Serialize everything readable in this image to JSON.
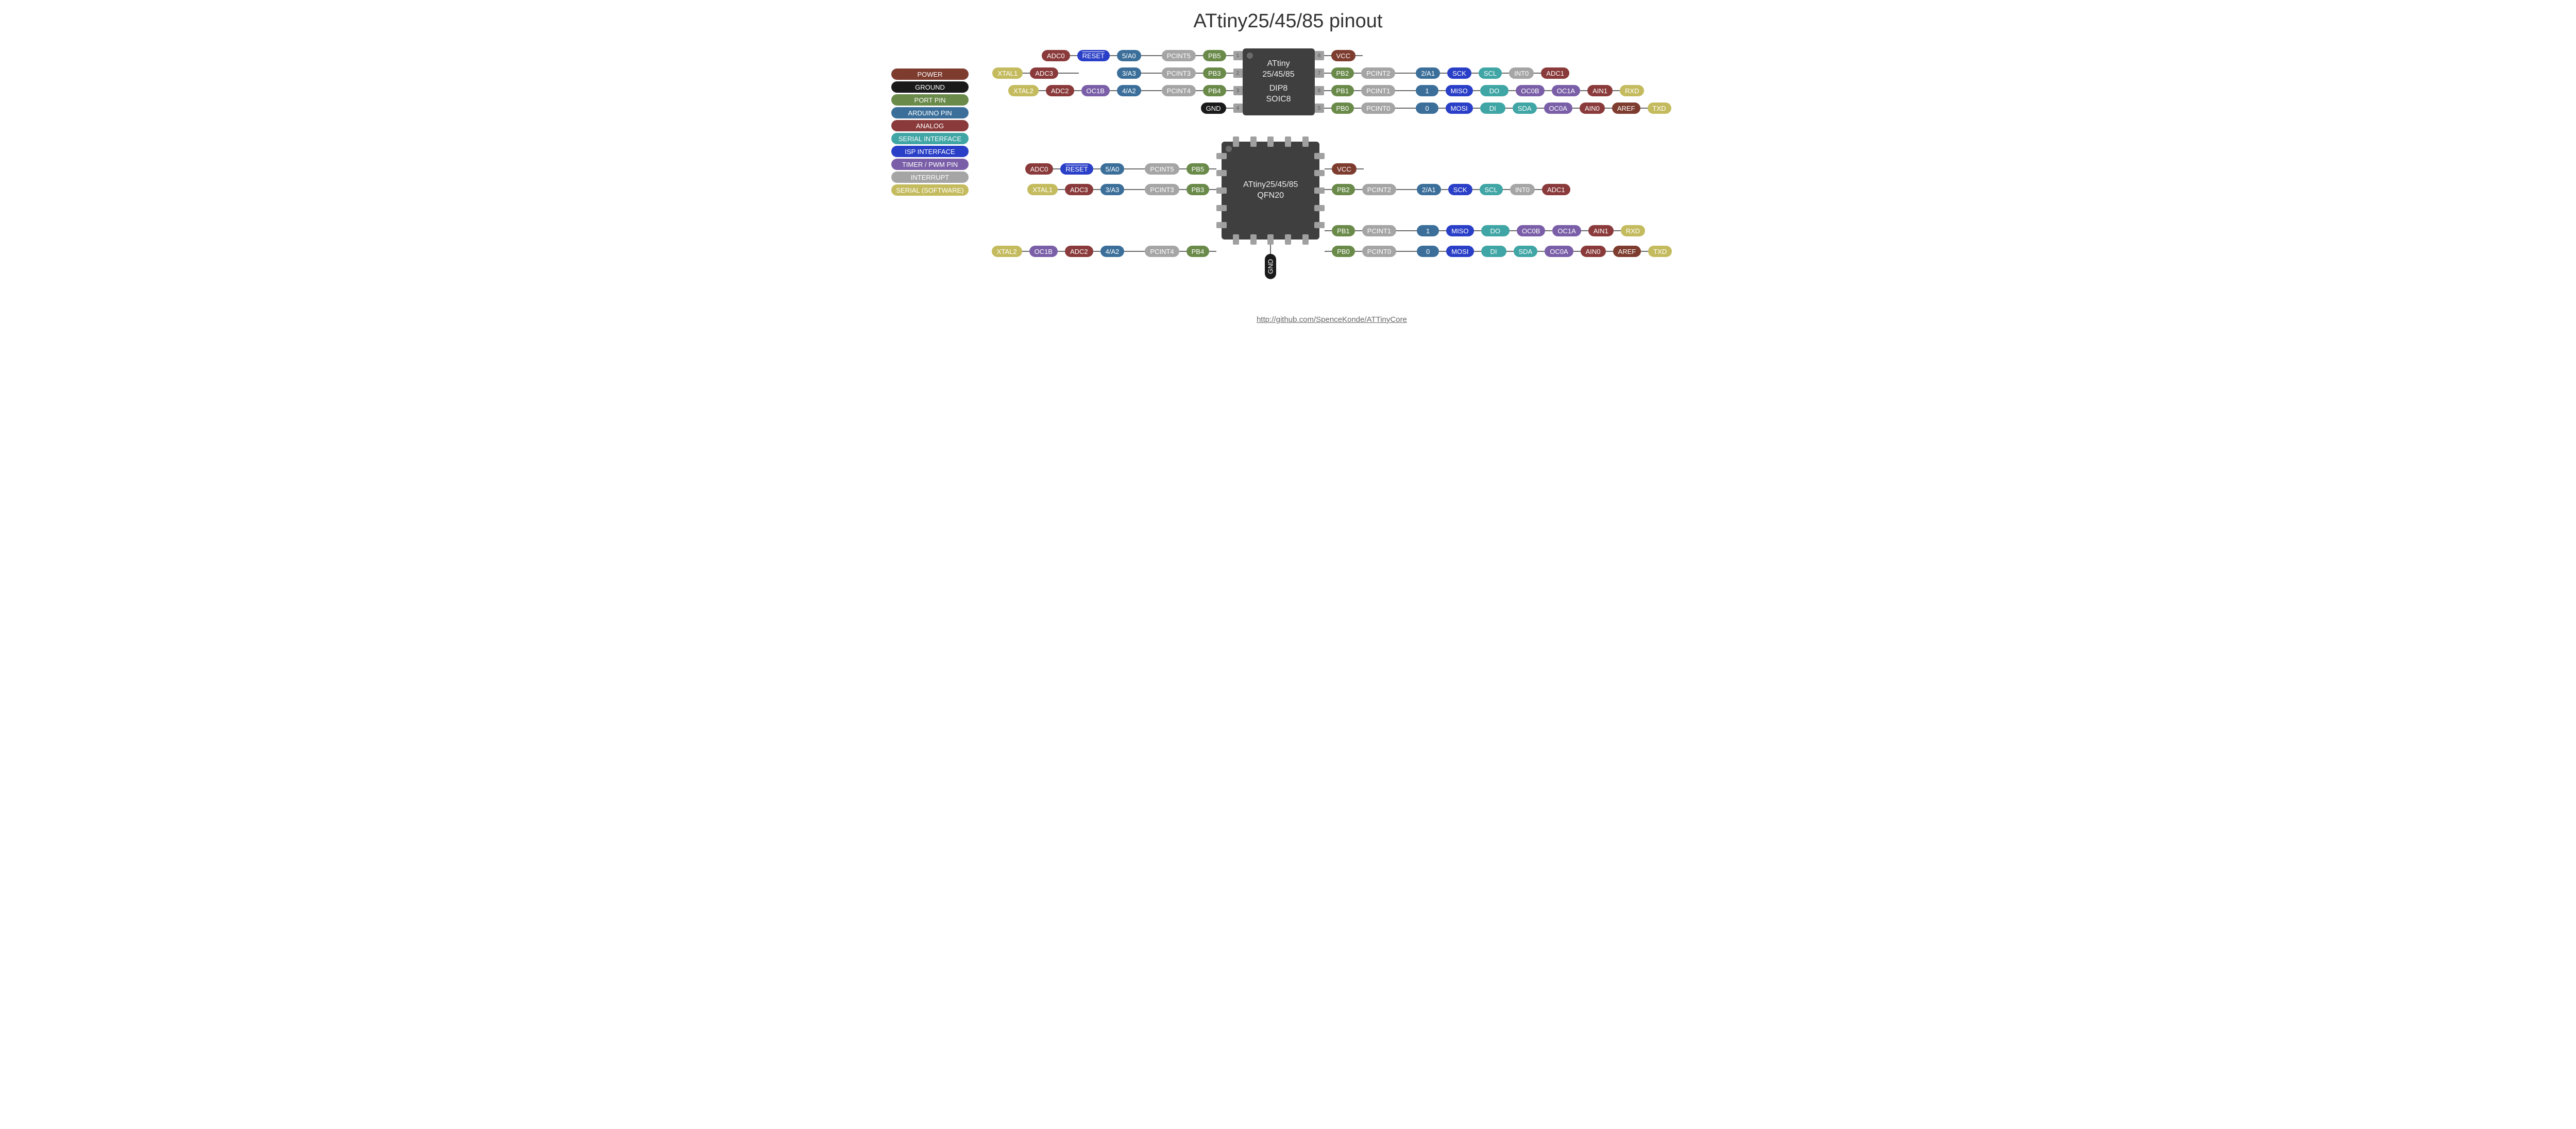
{
  "title": "ATtiny25/45/85 pinout",
  "footer_url": "http://github.com/SpenceKonde/ATTinyCore",
  "colors": {
    "power": "#7e3c2f",
    "ground": "#1a1a1a",
    "port": "#6a8a4a",
    "arduino": "#3b6f9a",
    "analog": "#8a3a3a",
    "serial": "#3fa5a5",
    "isp": "#2a3fc7",
    "timer": "#7a5fa8",
    "interrupt": "#a5a5a5",
    "softserial": "#c4bb5e",
    "chip_bg": "#3f3f3f",
    "chip_dot": "#6a6a6a",
    "wire": "#6a6a6a",
    "pinnum_bg": "#a0a0a0",
    "bg": "#ffffff"
  },
  "legend": [
    {
      "label": "POWER",
      "color_key": "power"
    },
    {
      "label": "GROUND",
      "color_key": "ground"
    },
    {
      "label": "PORT PIN",
      "color_key": "port"
    },
    {
      "label": "ARDUINO PIN",
      "color_key": "arduino"
    },
    {
      "label": "ANALOG",
      "color_key": "analog"
    },
    {
      "label": "SERIAL INTERFACE",
      "color_key": "serial"
    },
    {
      "label": "ISP INTERFACE",
      "color_key": "isp"
    },
    {
      "label": "TIMER / PWM PIN",
      "color_key": "timer"
    },
    {
      "label": "INTERRUPT",
      "color_key": "interrupt"
    },
    {
      "label": "SERIAL (SOFTWARE)",
      "color_key": "softserial"
    }
  ],
  "wire_lengths": {
    "short": 14,
    "long": 40
  },
  "dip8": {
    "chip_label_1": "ATtiny",
    "chip_label_2": "25/45/85",
    "chip_label_3": "DIP8",
    "chip_label_4": "SOIC8",
    "chip_w": 140,
    "chip_h": 130,
    "left_pins": [
      {
        "num": "1",
        "chain": [
          {
            "t": "ADC0",
            "c": "analog",
            "w": "short"
          },
          {
            "t": "RESET",
            "c": "isp",
            "overline": true,
            "w": "short"
          },
          {
            "t": "5/A0",
            "c": "arduino",
            "w": "long"
          },
          {
            "t": "PCINT5",
            "c": "interrupt",
            "w": "short"
          },
          {
            "t": "PB5",
            "c": "port",
            "w": "short"
          }
        ]
      },
      {
        "num": "2",
        "chain": [
          {
            "t": "XTAL1",
            "c": "softserial",
            "w": "short"
          },
          {
            "t": "ADC3",
            "c": "analog",
            "w": "long"
          },
          {
            "gap": 74
          },
          {
            "t": "3/A3",
            "c": "arduino",
            "w": "long"
          },
          {
            "t": "PCINT3",
            "c": "interrupt",
            "w": "short"
          },
          {
            "t": "PB3",
            "c": "port",
            "w": "short"
          }
        ]
      },
      {
        "num": "3",
        "chain": [
          {
            "t": "XTAL2",
            "c": "softserial",
            "w": "short"
          },
          {
            "t": "ADC2",
            "c": "analog",
            "w": "short"
          },
          {
            "t": "OC1B",
            "c": "timer",
            "w": "short"
          },
          {
            "t": "4/A2",
            "c": "arduino",
            "w": "long"
          },
          {
            "t": "PCINT4",
            "c": "interrupt",
            "w": "short"
          },
          {
            "t": "PB4",
            "c": "port",
            "w": "short"
          }
        ]
      },
      {
        "num": "4",
        "chain": [
          {
            "t": "GND",
            "c": "ground",
            "w": "short"
          }
        ]
      }
    ],
    "right_pins": [
      {
        "num": "8",
        "chain": [
          {
            "t": "VCC",
            "c": "power",
            "w": "short"
          }
        ]
      },
      {
        "num": "7",
        "chain": [
          {
            "t": "PB2",
            "c": "port",
            "w": "short"
          },
          {
            "t": "PCINT2",
            "c": "interrupt",
            "w": "long"
          },
          {
            "t": "2/A1",
            "c": "arduino",
            "w": "short"
          },
          {
            "t": "SCK",
            "c": "isp",
            "w": "short"
          },
          {
            "t": "SCL",
            "c": "serial",
            "w": "short"
          },
          {
            "t": "INT0",
            "c": "interrupt",
            "w": "short"
          },
          {
            "t": "ADC1",
            "c": "analog"
          }
        ]
      },
      {
        "num": "6",
        "chain": [
          {
            "t": "PB1",
            "c": "port",
            "w": "short"
          },
          {
            "t": "PCINT1",
            "c": "interrupt",
            "w": "long"
          },
          {
            "t": "1",
            "c": "arduino",
            "pad": true,
            "w": "short"
          },
          {
            "t": "MISO",
            "c": "isp",
            "w": "short"
          },
          {
            "t": "DO",
            "c": "serial",
            "pad": true,
            "w": "short"
          },
          {
            "t": "OC0B",
            "c": "timer",
            "w": "short"
          },
          {
            "t": "OC1A",
            "c": "timer",
            "w": "short"
          },
          {
            "t": "AIN1",
            "c": "analog",
            "w": "short"
          },
          {
            "t": "RXD",
            "c": "softserial"
          }
        ]
      },
      {
        "num": "5",
        "chain": [
          {
            "t": "PB0",
            "c": "port",
            "w": "short"
          },
          {
            "t": "PCINT0",
            "c": "interrupt",
            "w": "long"
          },
          {
            "t": "0",
            "c": "arduino",
            "pad": true,
            "w": "short"
          },
          {
            "t": "MOSI",
            "c": "isp",
            "w": "short"
          },
          {
            "t": "DI",
            "c": "serial",
            "pad": true,
            "w": "short"
          },
          {
            "t": "SDA",
            "c": "serial",
            "w": "short"
          },
          {
            "t": "OC0A",
            "c": "timer",
            "w": "short"
          },
          {
            "t": "AIN0",
            "c": "analog",
            "w": "short"
          },
          {
            "t": "AREF",
            "c": "power",
            "w": "short"
          },
          {
            "t": "TXD",
            "c": "softserial"
          }
        ]
      }
    ]
  },
  "qfn20": {
    "chip_label_1": "ATtiny25/45/85",
    "chip_label_2": "QFN20",
    "chip_w": 190,
    "chip_h": 190,
    "pads_per_side": 5,
    "gnd_label": "GND",
    "left_pins": [
      {
        "chain": [
          {
            "t": "ADC0",
            "c": "analog",
            "w": "short"
          },
          {
            "t": "RESET",
            "c": "isp",
            "overline": true,
            "w": "short"
          },
          {
            "t": "5/A0",
            "c": "arduino",
            "w": "long"
          },
          {
            "t": "PCINT5",
            "c": "interrupt",
            "w": "short"
          },
          {
            "t": "PB5",
            "c": "port",
            "w": "short"
          }
        ]
      },
      {
        "chain": [
          {
            "t": "XTAL1",
            "c": "softserial",
            "w": "short"
          },
          {
            "t": "ADC3",
            "c": "analog",
            "w": "short"
          },
          {
            "t": "3/A3",
            "c": "arduino",
            "w": "long"
          },
          {
            "t": "PCINT3",
            "c": "interrupt",
            "w": "short"
          },
          {
            "t": "PB3",
            "c": "port",
            "w": "short"
          }
        ]
      },
      {
        "blank": true
      },
      {
        "blank": true
      },
      {
        "chain": [
          {
            "t": "XTAL2",
            "c": "softserial",
            "w": "short"
          },
          {
            "t": "OC1B",
            "c": "timer",
            "w": "short"
          },
          {
            "t": "ADC2",
            "c": "analog",
            "w": "short"
          },
          {
            "t": "4/A2",
            "c": "arduino",
            "w": "long"
          },
          {
            "t": "PCINT4",
            "c": "interrupt",
            "w": "short"
          },
          {
            "t": "PB4",
            "c": "port",
            "w": "short"
          }
        ]
      }
    ],
    "right_pins": [
      {
        "chain": [
          {
            "t": "VCC",
            "c": "power",
            "w": "short"
          }
        ]
      },
      {
        "chain": [
          {
            "t": "PB2",
            "c": "port",
            "w": "short"
          },
          {
            "t": "PCINT2",
            "c": "interrupt",
            "w": "long"
          },
          {
            "t": "2/A1",
            "c": "arduino",
            "w": "short"
          },
          {
            "t": "SCK",
            "c": "isp",
            "w": "short"
          },
          {
            "t": "SCL",
            "c": "serial",
            "w": "short"
          },
          {
            "t": "INT0",
            "c": "interrupt",
            "w": "short"
          },
          {
            "t": "ADC1",
            "c": "analog"
          }
        ]
      },
      {
        "blank": true
      },
      {
        "chain": [
          {
            "t": "PB1",
            "c": "port",
            "w": "short"
          },
          {
            "t": "PCINT1",
            "c": "interrupt",
            "w": "long"
          },
          {
            "t": "1",
            "c": "arduino",
            "pad": true,
            "w": "short"
          },
          {
            "t": "MISO",
            "c": "isp",
            "w": "short"
          },
          {
            "t": "DO",
            "c": "serial",
            "pad": true,
            "w": "short"
          },
          {
            "t": "OC0B",
            "c": "timer",
            "w": "short"
          },
          {
            "t": "OC1A",
            "c": "timer",
            "w": "short"
          },
          {
            "t": "AIN1",
            "c": "analog",
            "w": "short"
          },
          {
            "t": "RXD",
            "c": "softserial"
          }
        ]
      },
      {
        "chain": [
          {
            "t": "PB0",
            "c": "port",
            "w": "short"
          },
          {
            "t": "PCINT0",
            "c": "interrupt",
            "w": "long"
          },
          {
            "t": "0",
            "c": "arduino",
            "pad": true,
            "w": "short"
          },
          {
            "t": "MOSI",
            "c": "isp",
            "w": "short"
          },
          {
            "t": "DI",
            "c": "serial",
            "pad": true,
            "w": "short"
          },
          {
            "t": "SDA",
            "c": "serial",
            "w": "short"
          },
          {
            "t": "OC0A",
            "c": "timer",
            "w": "short"
          },
          {
            "t": "AIN0",
            "c": "analog",
            "w": "short"
          },
          {
            "t": "AREF",
            "c": "power",
            "w": "short"
          },
          {
            "t": "TXD",
            "c": "softserial"
          }
        ]
      }
    ]
  }
}
